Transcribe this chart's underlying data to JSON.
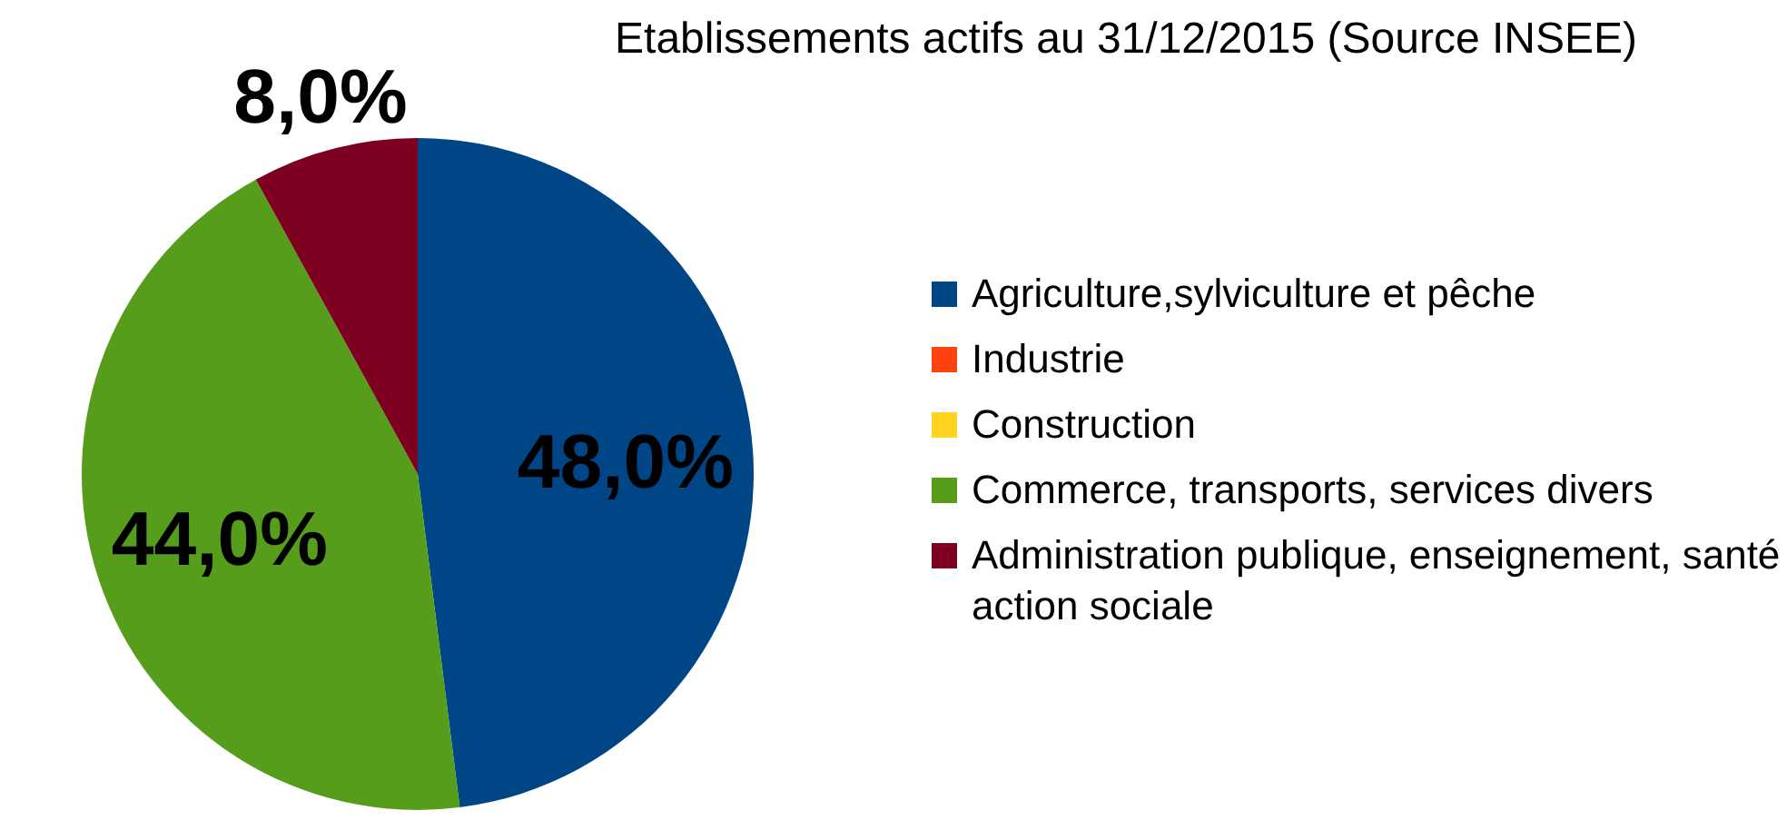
{
  "chart_data": {
    "type": "pie",
    "title": "Etablissements actifs au 31/12/2015 (Source INSEE)",
    "categories": [
      "Agriculture,sylviculture et pêche",
      "Industrie",
      "Construction",
      "Commerce, transports, services divers",
      "Administration publique, enseignement, santé action sociale"
    ],
    "values": [
      48,
      0,
      0,
      44,
      8
    ],
    "colors": [
      "#004586",
      "#ff420e",
      "#ffd320",
      "#579d1c",
      "#7e0021"
    ],
    "value_labels": [
      "48,0%",
      null,
      null,
      "44,0%",
      "8,0%"
    ],
    "legend": "right"
  }
}
